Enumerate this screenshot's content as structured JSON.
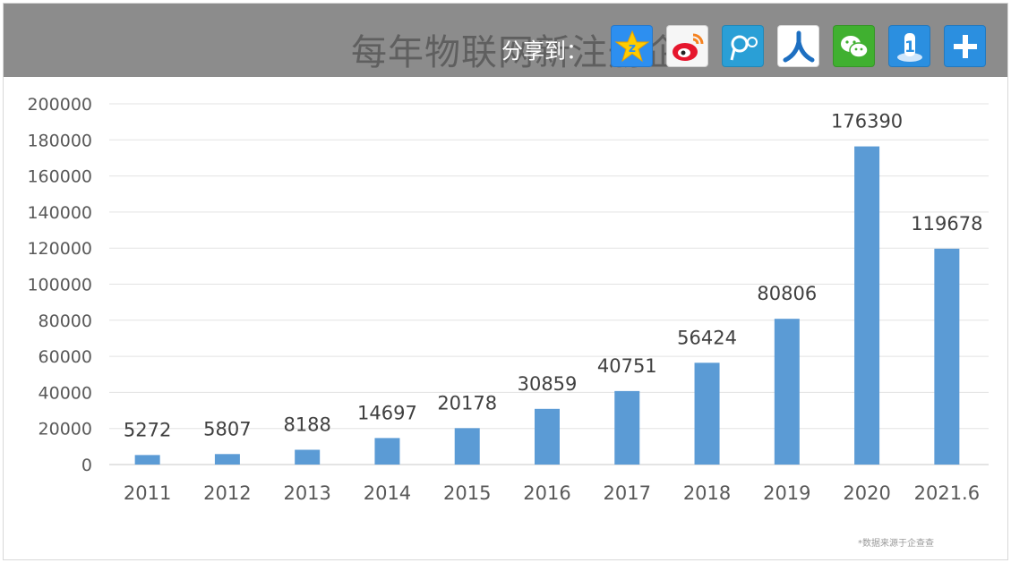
{
  "share_bar": {
    "title_text": "每年物联网新注册企",
    "label": "分享到：",
    "icons": [
      {
        "name": "qzone-icon",
        "color": "#2d8ff0"
      },
      {
        "name": "weibo-icon",
        "color": "#f6f6f6"
      },
      {
        "name": "tencent-weibo-icon",
        "color": "#2a9fd6"
      },
      {
        "name": "renren-icon",
        "color": "#1d6fc1"
      },
      {
        "name": "wechat-icon",
        "color": "#40b030"
      },
      {
        "name": "kaixin-icon",
        "color": "#2b8fe0"
      },
      {
        "name": "more-plus-icon",
        "color": "#2b8fe0"
      }
    ]
  },
  "chart_data": {
    "type": "bar",
    "title": "",
    "xlabel": "",
    "ylabel": "",
    "categories": [
      "2011",
      "2012",
      "2013",
      "2014",
      "2015",
      "2016",
      "2017",
      "2018",
      "2019",
      "2020",
      "2021.6"
    ],
    "values": [
      5272,
      5807,
      8188,
      14697,
      20178,
      30859,
      40751,
      56424,
      80806,
      176390,
      119678
    ],
    "ylim": [
      0,
      200000
    ],
    "yticks": [
      0,
      20000,
      40000,
      60000,
      80000,
      100000,
      120000,
      140000,
      160000,
      180000,
      200000
    ],
    "grid": true,
    "data_labels": true,
    "bar_color": "#5b9bd5",
    "legend": "none"
  },
  "source_note": "*数据来源于企查查"
}
